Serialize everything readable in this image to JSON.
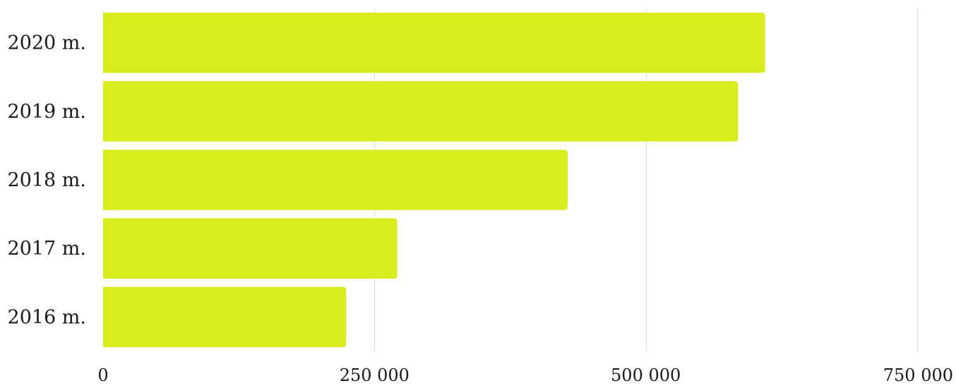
{
  "chart_data": {
    "type": "bar",
    "orientation": "horizontal",
    "title": "",
    "xlabel": "",
    "ylabel": "",
    "categories": [
      "2020 m.",
      "2019 m.",
      "2018 m.",
      "2017 m.",
      "2016 m."
    ],
    "values": [
      610000,
      585000,
      428000,
      271000,
      224000
    ],
    "xlim": [
      0,
      750000
    ],
    "x_ticks": [
      0,
      250000,
      500000,
      750000
    ],
    "x_tick_labels": [
      "0",
      "250 000",
      "500 000",
      "750 000"
    ],
    "grid": "vertical",
    "legend": "none",
    "colors": {
      "bar": "#d9ec20",
      "grid": "#dedede",
      "text": "#1a1a1a"
    }
  }
}
